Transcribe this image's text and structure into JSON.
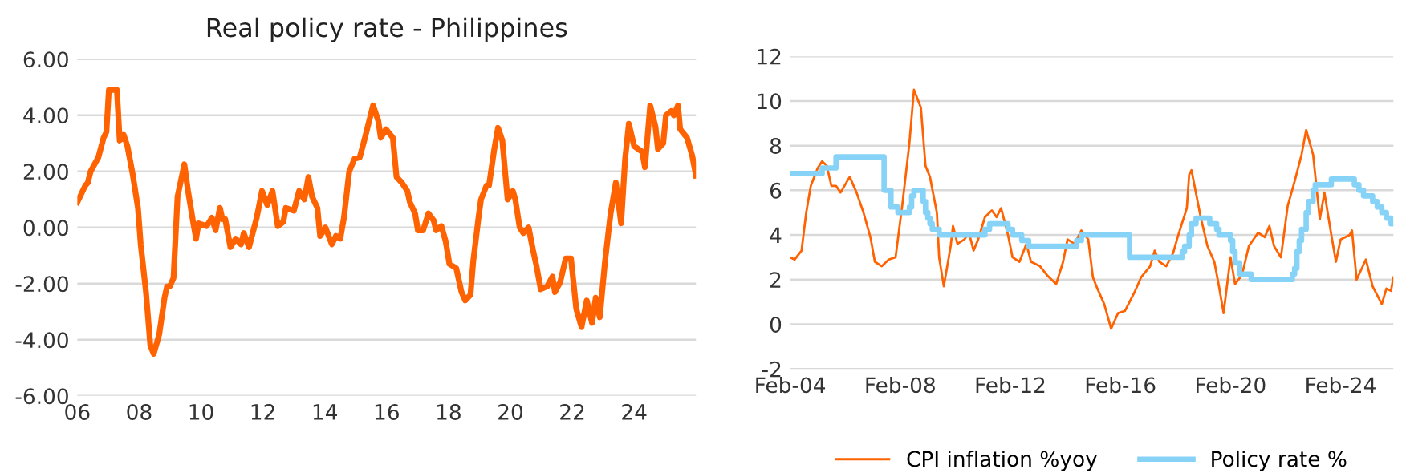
{
  "chart_data": [
    {
      "type": "line",
      "title": "Real policy rate - Philippines",
      "xlim": [
        2006,
        2026
      ],
      "ylim": [
        -6,
        6
      ],
      "grid": "y",
      "xticks": [
        {
          "value": 2006,
          "label": "06"
        },
        {
          "value": 2008,
          "label": "08"
        },
        {
          "value": 2010,
          "label": "10"
        },
        {
          "value": 2012,
          "label": "12"
        },
        {
          "value": 2014,
          "label": "14"
        },
        {
          "value": 2016,
          "label": "16"
        },
        {
          "value": 2018,
          "label": "18"
        },
        {
          "value": 2020,
          "label": "20"
        },
        {
          "value": 2022,
          "label": "22"
        },
        {
          "value": 2024,
          "label": "24"
        }
      ],
      "yticks": [
        {
          "value": -6,
          "label": "-6.00"
        },
        {
          "value": -4,
          "label": "-4.00"
        },
        {
          "value": -2,
          "label": "-2.00"
        },
        {
          "value": 0,
          "label": "0.00"
        },
        {
          "value": 2,
          "label": "2.00"
        },
        {
          "value": 4,
          "label": "4.00"
        },
        {
          "value": 6,
          "label": "6.00"
        }
      ],
      "series": [
        {
          "color": "#ff6200",
          "x": [
            2006.0,
            2006.26,
            2006.34,
            2006.43,
            2006.68,
            2006.85,
            2006.94,
            2007.02,
            2007.28,
            2007.37,
            2007.5,
            2007.62,
            2007.79,
            2007.96,
            2008.05,
            2008.22,
            2008.36,
            2008.47,
            2008.65,
            2008.82,
            2008.9,
            2008.99,
            2009.11,
            2009.24,
            2009.46,
            2009.58,
            2009.75,
            2009.84,
            2009.92,
            2010.18,
            2010.35,
            2010.47,
            2010.61,
            2010.69,
            2010.78,
            2010.95,
            2011.12,
            2011.29,
            2011.38,
            2011.55,
            2011.8,
            2011.97,
            2012.14,
            2012.31,
            2012.48,
            2012.66,
            2012.74,
            2013.0,
            2013.17,
            2013.34,
            2013.47,
            2013.59,
            2013.76,
            2013.85,
            2014.02,
            2014.23,
            2014.36,
            2014.5,
            2014.62,
            2014.79,
            2014.96,
            2015.13,
            2015.3,
            2015.56,
            2015.73,
            2015.81,
            2015.98,
            2016.2,
            2016.32,
            2016.49,
            2016.67,
            2016.75,
            2016.92,
            2017.01,
            2017.18,
            2017.35,
            2017.52,
            2017.6,
            2017.77,
            2017.91,
            2018.03,
            2018.25,
            2018.42,
            2018.54,
            2018.71,
            2018.8,
            2018.97,
            2019.05,
            2019.23,
            2019.31,
            2019.48,
            2019.6,
            2019.74,
            2019.91,
            2020.08,
            2020.16,
            2020.3,
            2020.42,
            2020.59,
            2020.73,
            2020.85,
            2020.98,
            2021.19,
            2021.36,
            2021.44,
            2021.61,
            2021.79,
            2021.96,
            2022.13,
            2022.3,
            2022.47,
            2022.64,
            2022.76,
            2022.89,
            2023.06,
            2023.24,
            2023.41,
            2023.58,
            2023.71,
            2023.83,
            2024.0,
            2024.26,
            2024.35,
            2024.52,
            2024.69,
            2024.77,
            2024.94,
            2025.03,
            2025.2,
            2025.28,
            2025.42,
            2025.49,
            2025.71,
            2025.88,
            2026.0
          ],
          "values": [
            0.9,
            1.5,
            1.6,
            2.0,
            2.5,
            3.2,
            3.4,
            4.9,
            4.9,
            3.1,
            3.3,
            2.9,
            1.9,
            0.7,
            -0.6,
            -2.3,
            -4.2,
            -4.5,
            -3.8,
            -2.5,
            -2.1,
            -2.1,
            -1.8,
            1.1,
            2.25,
            1.3,
            0.15,
            -0.4,
            0.15,
            0.05,
            0.35,
            -0.1,
            0.7,
            0.3,
            0.3,
            -0.7,
            -0.4,
            -0.6,
            -0.2,
            -0.7,
            0.35,
            1.3,
            0.8,
            1.3,
            0.05,
            0.2,
            0.7,
            0.6,
            1.3,
            1.0,
            1.8,
            1.1,
            0.7,
            -0.3,
            0.0,
            -0.6,
            -0.3,
            -0.4,
            0.35,
            2.0,
            2.45,
            2.5,
            3.2,
            4.35,
            3.8,
            3.2,
            3.5,
            3.2,
            1.8,
            1.6,
            1.3,
            0.9,
            0.5,
            -0.1,
            -0.1,
            0.5,
            0.25,
            -0.1,
            0.05,
            -0.5,
            -1.3,
            -1.45,
            -2.3,
            -2.6,
            -2.4,
            -1.2,
            0.35,
            1.0,
            1.5,
            1.5,
            2.8,
            3.55,
            3.1,
            1.0,
            1.3,
            1.0,
            0.0,
            -0.2,
            0.0,
            -0.8,
            -1.4,
            -2.2,
            -2.1,
            -1.75,
            -2.3,
            -1.95,
            -1.1,
            -1.1,
            -2.9,
            -3.55,
            -2.6,
            -3.4,
            -2.5,
            -3.2,
            -1.2,
            0.5,
            1.6,
            0.15,
            2.45,
            3.7,
            2.9,
            2.7,
            2.15,
            4.35,
            3.6,
            2.8,
            3.0,
            4.0,
            4.15,
            4.0,
            4.35,
            3.5,
            3.2,
            2.55,
            1.85
          ]
        }
      ]
    },
    {
      "type": "line",
      "xlim": [
        "2004-02",
        "2026-01"
      ],
      "ylim": [
        -2,
        12
      ],
      "grid": "y",
      "legend": "bottom",
      "xticks": [
        {
          "value": "2004-02",
          "label": "Feb-04"
        },
        {
          "value": "2008-02",
          "label": "Feb-08"
        },
        {
          "value": "2012-02",
          "label": "Feb-12"
        },
        {
          "value": "2016-02",
          "label": "Feb-16"
        },
        {
          "value": "2020-02",
          "label": "Feb-20"
        },
        {
          "value": "2024-02",
          "label": "Feb-24"
        }
      ],
      "yticks": [
        -2,
        0,
        2,
        4,
        6,
        8,
        10,
        12
      ],
      "series": [
        {
          "name": "CPI inflation %yoy",
          "type": "line",
          "color": "#ff6200",
          "x": [
            "2004-02",
            "2004-04",
            "2004-07",
            "2004-09",
            "2004-11",
            "2005-02",
            "2005-04",
            "2005-06",
            "2005-08",
            "2005-10",
            "2005-12",
            "2006-04",
            "2006-07",
            "2006-10",
            "2007-01",
            "2007-03",
            "2007-06",
            "2007-09",
            "2007-12",
            "2008-03",
            "2008-06",
            "2008-08",
            "2008-11",
            "2009-01",
            "2009-03",
            "2009-06",
            "2009-07",
            "2009-09",
            "2009-12",
            "2010-01",
            "2010-03",
            "2010-06",
            "2010-08",
            "2010-10",
            "2010-12",
            "2011-03",
            "2011-06",
            "2011-08",
            "2011-10",
            "2012-01",
            "2012-03",
            "2012-06",
            "2012-09",
            "2012-11",
            "2013-03",
            "2013-06",
            "2013-10",
            "2014-01",
            "2014-03",
            "2014-06",
            "2014-09",
            "2014-12",
            "2015-02",
            "2015-04",
            "2015-07",
            "2015-10",
            "2016-01",
            "2016-04",
            "2016-08",
            "2016-11",
            "2017-03",
            "2017-05",
            "2017-07",
            "2017-10",
            "2018-01",
            "2018-03",
            "2018-07",
            "2018-08",
            "2018-09",
            "2019-01",
            "2019-04",
            "2019-07",
            "2019-09",
            "2019-11",
            "2020-02",
            "2020-04",
            "2020-07",
            "2020-10",
            "2021-02",
            "2021-05",
            "2021-07",
            "2021-09",
            "2021-12",
            "2022-03",
            "2022-06",
            "2022-09",
            "2022-11",
            "2023-02",
            "2023-05",
            "2023-07",
            "2023-10",
            "2023-12",
            "2024-02",
            "2024-06",
            "2024-07",
            "2024-09",
            "2025-01",
            "2025-04",
            "2025-08",
            "2025-10",
            "2025-12",
            "2026-01"
          ],
          "values": [
            3.0,
            2.9,
            3.3,
            5.0,
            6.2,
            7.0,
            7.3,
            7.1,
            6.2,
            6.2,
            5.9,
            6.6,
            5.9,
            5.0,
            3.9,
            2.8,
            2.6,
            2.9,
            3.0,
            5.4,
            8.1,
            10.5,
            9.7,
            7.1,
            6.6,
            5.0,
            3.0,
            1.7,
            3.5,
            4.4,
            3.6,
            3.8,
            4.1,
            3.3,
            3.8,
            4.8,
            5.1,
            4.8,
            5.2,
            4.0,
            3.0,
            2.8,
            3.6,
            2.8,
            2.6,
            2.2,
            1.8,
            2.8,
            3.8,
            3.6,
            4.2,
            3.8,
            2.1,
            1.6,
            0.9,
            -0.2,
            0.5,
            0.6,
            1.4,
            2.1,
            2.6,
            3.3,
            2.8,
            2.6,
            3.2,
            3.9,
            5.2,
            6.7,
            6.9,
            4.8,
            3.5,
            2.8,
            1.7,
            0.5,
            3.0,
            1.8,
            2.2,
            3.5,
            4.1,
            3.9,
            4.4,
            3.5,
            3.0,
            5.3,
            6.4,
            7.6,
            8.7,
            7.6,
            4.7,
            5.9,
            4.0,
            2.8,
            3.8,
            4.0,
            4.2,
            2.0,
            2.9,
            1.7,
            0.9,
            1.6,
            1.5,
            2.1
          ]
        },
        {
          "name": "Policy rate %",
          "type": "step",
          "color": "#87d3f8",
          "x": [
            "2004-02",
            "2005-04",
            "2005-10",
            "2007-07",
            "2007-10",
            "2008-01",
            "2008-06",
            "2008-07",
            "2008-08",
            "2008-12",
            "2009-01",
            "2009-02",
            "2009-03",
            "2009-04",
            "2009-07",
            "2011-03",
            "2011-05",
            "2012-01",
            "2012-03",
            "2012-07",
            "2012-10",
            "2014-07",
            "2014-09",
            "2016-06",
            "2018-05",
            "2018-06",
            "2018-08",
            "2018-09",
            "2018-11",
            "2019-05",
            "2019-08",
            "2019-09",
            "2020-02",
            "2020-03",
            "2020-04",
            "2020-06",
            "2020-11",
            "2022-05",
            "2022-06",
            "2022-07",
            "2022-08",
            "2022-09",
            "2022-11",
            "2022-12",
            "2023-02",
            "2023-03",
            "2023-10",
            "2024-08",
            "2024-10",
            "2024-12",
            "2025-04",
            "2025-06",
            "2025-08",
            "2025-10",
            "2025-12",
            "2026-01"
          ],
          "values": [
            6.75,
            7.0,
            7.5,
            6.0,
            5.25,
            5.0,
            5.25,
            5.75,
            6.0,
            5.5,
            5.0,
            4.75,
            4.5,
            4.25,
            4.0,
            4.25,
            4.5,
            4.25,
            4.0,
            3.75,
            3.5,
            3.75,
            4.0,
            3.0,
            3.25,
            3.5,
            4.0,
            4.5,
            4.75,
            4.5,
            4.25,
            4.0,
            3.75,
            3.25,
            2.75,
            2.25,
            2.0,
            2.25,
            2.5,
            3.25,
            3.75,
            4.25,
            5.0,
            5.5,
            6.0,
            6.25,
            6.5,
            6.25,
            6.0,
            5.75,
            5.5,
            5.25,
            5.0,
            4.75,
            4.5,
            4.5
          ]
        }
      ]
    }
  ]
}
